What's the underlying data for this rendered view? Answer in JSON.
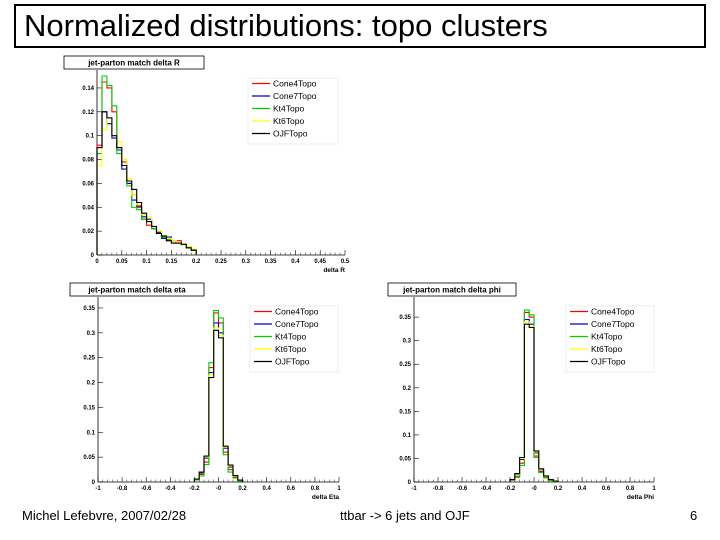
{
  "slide": {
    "title": "Normalized distributions: topo clusters",
    "footer_left": "Michel Lefebvre, 2007/02/28",
    "footer_center": "ttbar -> 6 jets and OJF",
    "footer_right": "6"
  },
  "colors": {
    "Cone4Topo": "#ff0000",
    "Cone7Topo": "#0000cc",
    "Kt4Topo": "#00cc00",
    "Kt6Topo": "#ffff00",
    "OJFTopo": "#000000"
  },
  "chart_data": [
    {
      "type": "histogram",
      "title": "jet-parton match delta R",
      "xlabel": "delta R",
      "xlim": [
        0,
        0.5
      ],
      "ylim": [
        0,
        0.15
      ],
      "xticks": [
        "0",
        "0.05",
        "0.1",
        "0.15",
        "0.2",
        "0.25",
        "0.3",
        "0.35",
        "0.4",
        "0.45",
        "0.5"
      ],
      "yticks": [
        "0",
        "0.02",
        "0.04",
        "0.06",
        "0.08",
        "0.1",
        "0.12",
        "0.14"
      ],
      "bin_edges": [
        0.0,
        0.01,
        0.02,
        0.03,
        0.04,
        0.05,
        0.06,
        0.07,
        0.08,
        0.09,
        0.1,
        0.11,
        0.12,
        0.13,
        0.14,
        0.15,
        0.16,
        0.17,
        0.18,
        0.19,
        0.2
      ],
      "legend": [
        "Cone4Topo",
        "Cone7Topo",
        "Kt4Topo",
        "Kt6Topo",
        "OJFTopo"
      ],
      "series": [
        {
          "name": "Cone4Topo",
          "values": [
            0.092,
            0.145,
            0.14,
            0.12,
            0.09,
            0.078,
            0.06,
            0.05,
            0.04,
            0.03,
            0.025,
            0.022,
            0.02,
            0.014,
            0.012,
            0.01,
            0.012,
            0.008,
            0.006,
            0.004
          ]
        },
        {
          "name": "Cone7Topo",
          "values": [
            0.09,
            0.12,
            0.11,
            0.098,
            0.088,
            0.072,
            0.06,
            0.046,
            0.041,
            0.032,
            0.03,
            0.022,
            0.019,
            0.014,
            0.015,
            0.012,
            0.01,
            0.008,
            0.006,
            0.004
          ]
        },
        {
          "name": "Kt4Topo",
          "values": [
            0.085,
            0.15,
            0.142,
            0.125,
            0.085,
            0.075,
            0.058,
            0.04,
            0.038,
            0.03,
            0.028,
            0.022,
            0.018,
            0.015,
            0.013,
            0.012,
            0.01,
            0.009,
            0.006,
            0.004
          ]
        },
        {
          "name": "Kt6Topo",
          "values": [
            0.075,
            0.105,
            0.115,
            0.1,
            0.095,
            0.08,
            0.064,
            0.05,
            0.042,
            0.034,
            0.032,
            0.024,
            0.02,
            0.016,
            0.014,
            0.012,
            0.01,
            0.008,
            0.007,
            0.005
          ]
        },
        {
          "name": "OJFTopo",
          "values": [
            0.09,
            0.12,
            0.115,
            0.1,
            0.09,
            0.075,
            0.062,
            0.055,
            0.044,
            0.035,
            0.028,
            0.024,
            0.018,
            0.016,
            0.012,
            0.01,
            0.01,
            0.009,
            0.006,
            0.004
          ]
        }
      ]
    },
    {
      "type": "histogram",
      "title": "jet-parton match delta eta",
      "xlabel": "delta Eta",
      "xlim": [
        -1,
        1
      ],
      "ylim": [
        0,
        0.36
      ],
      "xticks": [
        "-1",
        "-0.8",
        "-0.6",
        "-0.4",
        "-0.2",
        "-0",
        "0.2",
        "0.4",
        "0.6",
        "0.8",
        "1"
      ],
      "yticks": [
        "0",
        "0.05",
        "0.1",
        "0.15",
        "0.2",
        "0.25",
        "0.3",
        "0.35"
      ],
      "bin_edges": [
        -0.2,
        -0.16,
        -0.12,
        -0.08,
        -0.04,
        0.0,
        0.04,
        0.08,
        0.12,
        0.16,
        0.2
      ],
      "legend": [
        "Cone4Topo",
        "Cone7Topo",
        "Kt4Topo",
        "Kt6Topo",
        "OJFTopo"
      ],
      "series": [
        {
          "name": "Cone4Topo",
          "values": [
            0.005,
            0.015,
            0.04,
            0.23,
            0.34,
            0.32,
            0.06,
            0.025,
            0.01,
            0.003
          ]
        },
        {
          "name": "Cone7Topo",
          "values": [
            0.006,
            0.018,
            0.048,
            0.22,
            0.32,
            0.3,
            0.068,
            0.03,
            0.012,
            0.004
          ]
        },
        {
          "name": "Kt4Topo",
          "values": [
            0.004,
            0.012,
            0.035,
            0.24,
            0.345,
            0.33,
            0.055,
            0.02,
            0.008,
            0.002
          ]
        },
        {
          "name": "Kt6Topo",
          "values": [
            0.006,
            0.02,
            0.05,
            0.215,
            0.31,
            0.295,
            0.07,
            0.032,
            0.012,
            0.004
          ]
        },
        {
          "name": "OJFTopo",
          "values": [
            0.006,
            0.02,
            0.052,
            0.21,
            0.305,
            0.29,
            0.072,
            0.034,
            0.013,
            0.004
          ]
        }
      ]
    },
    {
      "type": "histogram",
      "title": "jet-parton match delta phi",
      "xlabel": "delta Phi",
      "xlim": [
        -1,
        1
      ],
      "ylim": [
        0,
        0.38
      ],
      "xticks": [
        "-1",
        "-0.8",
        "-0.6",
        "-0.4",
        "-0.2",
        "-0",
        "0.2",
        "0.4",
        "0.6",
        "0.8",
        "1"
      ],
      "yticks": [
        "0",
        "0.05",
        "0.1",
        "0.15",
        "0.2",
        "0.25",
        "0.3",
        "0.35"
      ],
      "bin_edges": [
        -0.2,
        -0.16,
        -0.12,
        -0.08,
        -0.04,
        0.0,
        0.04,
        0.08,
        0.12,
        0.16,
        0.2
      ],
      "legend": [
        "Cone4Topo",
        "Cone7Topo",
        "Kt4Topo",
        "Kt6Topo",
        "OJFTopo"
      ],
      "series": [
        {
          "name": "Cone4Topo",
          "values": [
            0.004,
            0.012,
            0.04,
            0.36,
            0.35,
            0.055,
            0.022,
            0.01,
            0.004,
            0.002
          ]
        },
        {
          "name": "Cone7Topo",
          "values": [
            0.005,
            0.016,
            0.048,
            0.345,
            0.335,
            0.062,
            0.026,
            0.012,
            0.005,
            0.002
          ]
        },
        {
          "name": "Kt4Topo",
          "values": [
            0.004,
            0.01,
            0.035,
            0.365,
            0.355,
            0.052,
            0.02,
            0.009,
            0.003,
            0.001
          ]
        },
        {
          "name": "Kt6Topo",
          "values": [
            0.005,
            0.017,
            0.05,
            0.34,
            0.33,
            0.064,
            0.027,
            0.012,
            0.005,
            0.002
          ]
        },
        {
          "name": "OJFTopo",
          "values": [
            0.005,
            0.018,
            0.052,
            0.335,
            0.328,
            0.066,
            0.028,
            0.013,
            0.005,
            0.002
          ]
        }
      ]
    }
  ]
}
